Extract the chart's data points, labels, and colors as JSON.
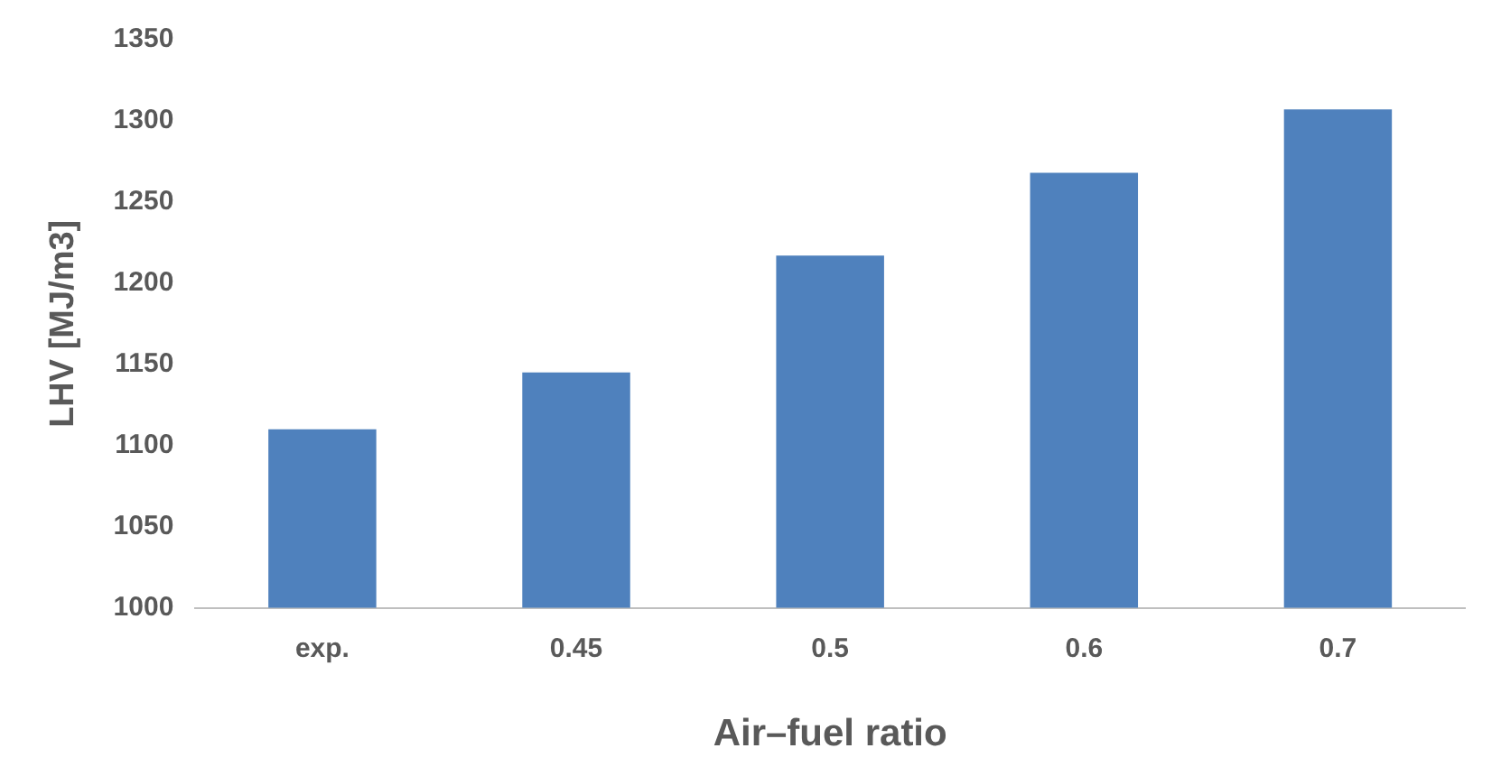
{
  "chart_data": {
    "type": "bar",
    "xlabel": "Air–fuel ratio",
    "ylabel": "LHV [MJ/m3]",
    "categories": [
      "exp.",
      "0.45",
      "0.5",
      "0.6",
      "0.7"
    ],
    "values": [
      1110,
      1145,
      1217,
      1268,
      1307
    ],
    "color": "#4f81bd",
    "ylim": [
      1000,
      1350
    ],
    "yticks": [
      1000,
      1050,
      1100,
      1150,
      1200,
      1250,
      1300,
      1350
    ],
    "grid": false,
    "legend": false
  }
}
